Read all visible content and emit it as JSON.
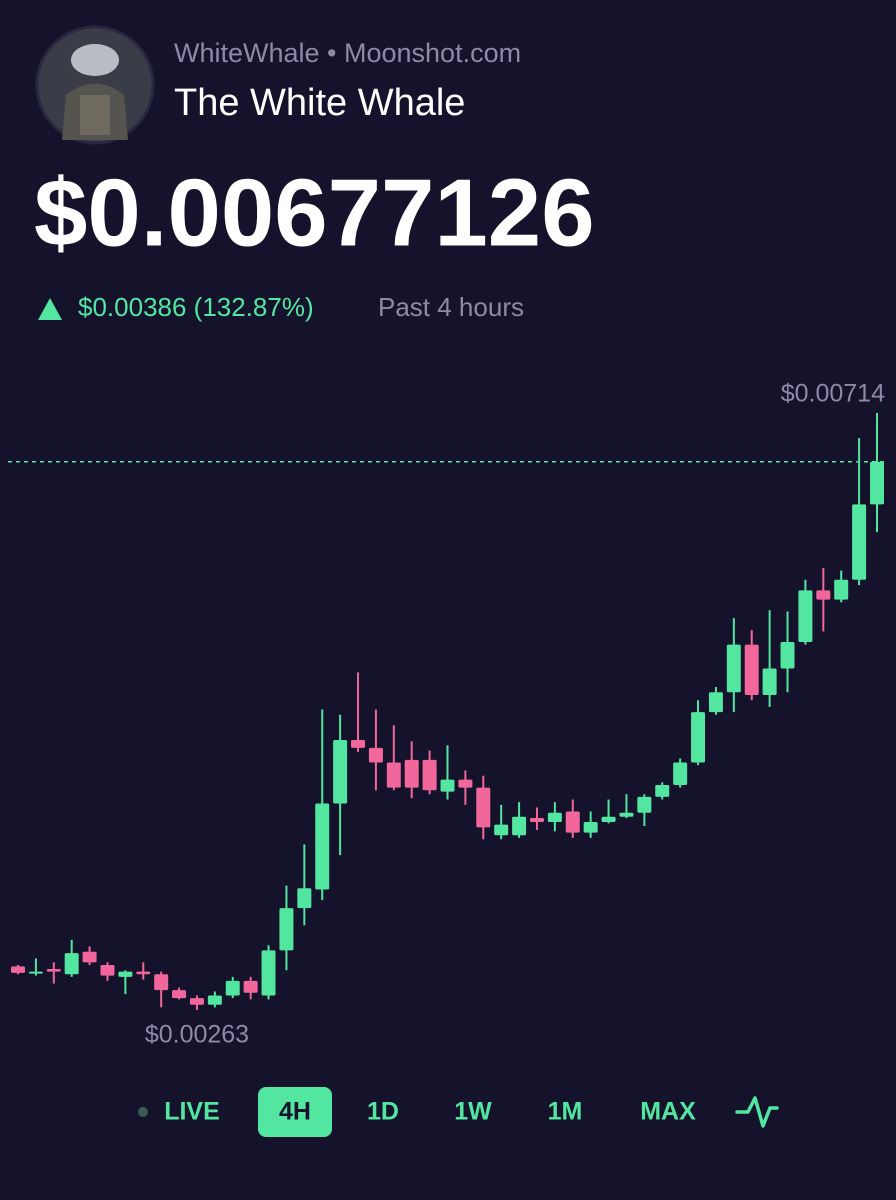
{
  "header": {
    "source": "WhiteWhale • Moonshot.com",
    "name": "The White Whale",
    "price": "$0.00677126",
    "change": "$0.00386 (132.87%)",
    "period": "Past 4 hours"
  },
  "chart_data": {
    "type": "candlestick",
    "open": [
      0.00296,
      0.00291,
      0.00294,
      0.0029,
      0.00307,
      0.00297,
      0.00288,
      0.00292,
      0.0029,
      0.00278,
      0.00272,
      0.00267,
      0.00274,
      0.00285,
      0.00274,
      0.00308,
      0.0034,
      0.00354,
      0.00419,
      0.00467,
      0.00461,
      0.0045,
      0.00452,
      0.00452,
      0.00428,
      0.00437,
      0.00431,
      0.00395,
      0.00395,
      0.00408,
      0.00405,
      0.00413,
      0.00397,
      0.00405,
      0.00409,
      0.00412,
      0.00424,
      0.00433,
      0.0045,
      0.00488,
      0.00503,
      0.00539,
      0.00501,
      0.00521,
      0.00541,
      0.0058,
      0.00573,
      0.00588,
      0.00645
    ],
    "high": [
      0.00297,
      0.00302,
      0.00299,
      0.00316,
      0.00311,
      0.00299,
      0.00293,
      0.00299,
      0.00292,
      0.0028,
      0.00274,
      0.00277,
      0.00288,
      0.00288,
      0.00312,
      0.00357,
      0.00388,
      0.0049,
      0.00486,
      0.00518,
      0.0049,
      0.00478,
      0.00466,
      0.00459,
      0.00463,
      0.00444,
      0.0044,
      0.00418,
      0.0042,
      0.00416,
      0.0042,
      0.00422,
      0.00413,
      0.00422,
      0.00426,
      0.00426,
      0.00435,
      0.00453,
      0.00497,
      0.00507,
      0.00559,
      0.0055,
      0.00565,
      0.00564,
      0.00588,
      0.00597,
      0.00595,
      0.00695,
      0.00714
    ],
    "low": [
      0.0029,
      0.00289,
      0.00283,
      0.00288,
      0.00297,
      0.00285,
      0.00275,
      0.00286,
      0.00265,
      0.00271,
      0.00263,
      0.00265,
      0.00272,
      0.00271,
      0.00271,
      0.00293,
      0.00327,
      0.00346,
      0.0038,
      0.00458,
      0.00429,
      0.00429,
      0.00423,
      0.00426,
      0.00422,
      0.00418,
      0.00392,
      0.00392,
      0.00393,
      0.00399,
      0.00398,
      0.00393,
      0.00393,
      0.00404,
      0.00408,
      0.00402,
      0.00422,
      0.00431,
      0.00448,
      0.00486,
      0.00488,
      0.00497,
      0.00492,
      0.00503,
      0.00539,
      0.00549,
      0.00571,
      0.00584,
      0.00624
    ],
    "close": [
      0.00291,
      0.00292,
      0.00292,
      0.00306,
      0.00299,
      0.00289,
      0.00292,
      0.0029,
      0.00278,
      0.00272,
      0.00267,
      0.00274,
      0.00285,
      0.00276,
      0.00308,
      0.0034,
      0.00355,
      0.00419,
      0.00467,
      0.00461,
      0.0045,
      0.00431,
      0.00431,
      0.00429,
      0.00437,
      0.00431,
      0.00401,
      0.00403,
      0.00409,
      0.00405,
      0.00412,
      0.00397,
      0.00405,
      0.00409,
      0.00412,
      0.00424,
      0.00433,
      0.0045,
      0.00488,
      0.00503,
      0.00539,
      0.00501,
      0.00521,
      0.00541,
      0.0058,
      0.00573,
      0.00588,
      0.00645,
      0.00677126
    ],
    "up_color": "#52e6a0",
    "down_color": "#f2679b",
    "max_label": "$0.00714",
    "min_label": "$0.00263"
  },
  "tabs": {
    "live": "LIVE",
    "items": [
      "4H",
      "1D",
      "1W",
      "1M",
      "MAX"
    ],
    "selected": 0
  }
}
